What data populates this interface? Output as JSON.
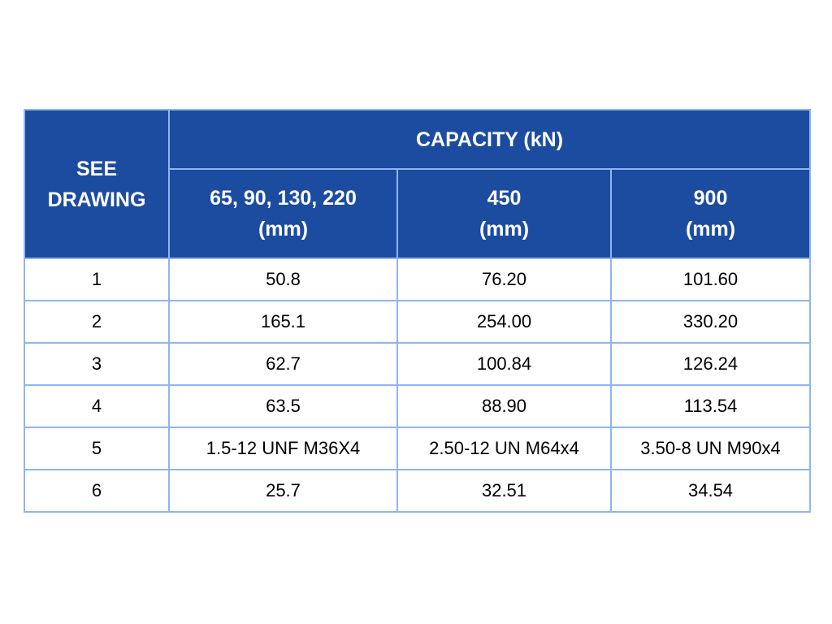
{
  "table": {
    "corner": [
      "SEE",
      "DRAWING"
    ],
    "group_header": "CAPACITY (kN)",
    "columns": [
      [
        "65, 90, 130, 220",
        "(mm)"
      ],
      [
        "450",
        "(mm)"
      ],
      [
        "900",
        "(mm)"
      ]
    ],
    "rows": [
      [
        "1",
        "50.8",
        "76.20",
        "101.60"
      ],
      [
        "2",
        "165.1",
        "254.00",
        "330.20"
      ],
      [
        "3",
        "62.7",
        "100.84",
        "126.24"
      ],
      [
        "4",
        "63.5",
        "88.90",
        "113.54"
      ],
      [
        "5",
        "1.5-12 UNF M36X4",
        "2.50-12 UN M64x4",
        "3.50-8 UN M90x4"
      ],
      [
        "6",
        "25.7",
        "32.51",
        "34.54"
      ]
    ]
  }
}
